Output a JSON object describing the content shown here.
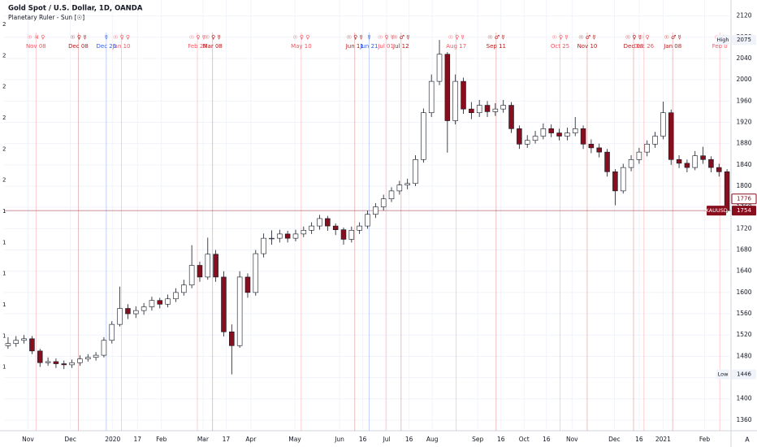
{
  "chart_data": {
    "type": "candlestick",
    "title": "Gold Spot / U.S. Dollar, 1D, OANDA",
    "subtitle": "Planetary Ruler - Sun [☉]",
    "up_color": "#ffffff",
    "down_color": "#880e1e",
    "wick_color": "#131722",
    "open": [
      1500,
      1504,
      1510,
      1513,
      1490,
      1468,
      1470,
      1466,
      1464,
      1468,
      1475,
      1478,
      1482,
      1510,
      1540,
      1570,
      1560,
      1566,
      1573,
      1585,
      1578,
      1588,
      1600,
      1614,
      1651,
      1629,
      1672,
      1629,
      1526,
      1500,
      1629,
      1600,
      1673,
      1702,
      1702,
      1710,
      1702,
      1710,
      1717,
      1725,
      1739,
      1725,
      1718,
      1700,
      1717,
      1725,
      1747,
      1761,
      1776,
      1791,
      1802,
      1805,
      1850,
      1938,
      1997,
      2048,
      1923,
      1997,
      1945,
      1938,
      1952,
      1940,
      1945,
      1952,
      1908,
      1879,
      1886,
      1894,
      1908,
      1900,
      1894,
      1900,
      1908,
      1879,
      1872,
      1864,
      1827,
      1791,
      1835,
      1850,
      1864,
      1879,
      1894,
      1938,
      1850,
      1843,
      1835,
      1857,
      1850,
      1835,
      1827
    ],
    "high": [
      1516,
      1518,
      1520,
      1518,
      1494,
      1478,
      1476,
      1472,
      1474,
      1482,
      1484,
      1488,
      1516,
      1546,
      1611,
      1578,
      1574,
      1580,
      1592,
      1590,
      1596,
      1608,
      1624,
      1689,
      1658,
      1703,
      1680,
      1640,
      1540,
      1640,
      1636,
      1680,
      1711,
      1717,
      1718,
      1716,
      1718,
      1724,
      1732,
      1746,
      1744,
      1730,
      1722,
      1724,
      1732,
      1754,
      1768,
      1784,
      1798,
      1810,
      1814,
      1858,
      1946,
      2010,
      2075,
      2052,
      2010,
      2004,
      1958,
      1962,
      1960,
      1956,
      1962,
      1958,
      1914,
      1896,
      1904,
      1918,
      1916,
      1908,
      1910,
      1930,
      1914,
      1888,
      1880,
      1870,
      1832,
      1842,
      1858,
      1872,
      1886,
      1902,
      1959,
      1944,
      1858,
      1850,
      1866,
      1874,
      1856,
      1842,
      1832
    ],
    "low": [
      1494,
      1498,
      1504,
      1484,
      1460,
      1462,
      1458,
      1456,
      1458,
      1462,
      1470,
      1472,
      1478,
      1504,
      1536,
      1550,
      1552,
      1558,
      1566,
      1570,
      1572,
      1582,
      1594,
      1608,
      1620,
      1624,
      1620,
      1517,
      1446,
      1496,
      1590,
      1594,
      1666,
      1690,
      1694,
      1694,
      1696,
      1704,
      1710,
      1718,
      1716,
      1708,
      1690,
      1694,
      1710,
      1720,
      1740,
      1754,
      1770,
      1784,
      1794,
      1800,
      1844,
      1930,
      1990,
      1863,
      1916,
      1936,
      1926,
      1930,
      1930,
      1932,
      1938,
      1900,
      1870,
      1872,
      1880,
      1888,
      1892,
      1886,
      1886,
      1894,
      1870,
      1862,
      1854,
      1818,
      1764,
      1786,
      1828,
      1842,
      1856,
      1872,
      1888,
      1840,
      1834,
      1826,
      1830,
      1842,
      1826,
      1818,
      1750
    ],
    "close": [
      1504,
      1510,
      1513,
      1490,
      1468,
      1470,
      1466,
      1464,
      1468,
      1475,
      1478,
      1482,
      1510,
      1540,
      1570,
      1560,
      1566,
      1573,
      1585,
      1578,
      1588,
      1600,
      1614,
      1651,
      1629,
      1672,
      1629,
      1526,
      1500,
      1629,
      1600,
      1673,
      1702,
      1702,
      1710,
      1702,
      1710,
      1717,
      1725,
      1739,
      1725,
      1718,
      1700,
      1717,
      1725,
      1747,
      1761,
      1776,
      1791,
      1802,
      1805,
      1850,
      1938,
      1997,
      2048,
      1923,
      1997,
      1945,
      1938,
      1952,
      1940,
      1945,
      1952,
      1908,
      1879,
      1886,
      1894,
      1908,
      1900,
      1894,
      1900,
      1908,
      1879,
      1872,
      1864,
      1827,
      1791,
      1835,
      1850,
      1864,
      1879,
      1894,
      1938,
      1850,
      1843,
      1835,
      1857,
      1850,
      1835,
      1827,
      1754
    ],
    "xlim": [
      -0.5,
      90.5
    ],
    "xticks": [
      {
        "value": 2.5,
        "label": "Nov"
      },
      {
        "value": 7.8,
        "label": "Dec"
      },
      {
        "value": 13.1,
        "label": "2020"
      },
      {
        "value": 16.2,
        "label": "17"
      },
      {
        "value": 19.2,
        "label": "Feb"
      },
      {
        "value": 24.4,
        "label": "Mar"
      },
      {
        "value": 27.3,
        "label": "17"
      },
      {
        "value": 30.4,
        "label": "Apr"
      },
      {
        "value": 35.9,
        "label": "May"
      },
      {
        "value": 41.5,
        "label": "Jun"
      },
      {
        "value": 44.4,
        "label": "16"
      },
      {
        "value": 47.4,
        "label": "Jul"
      },
      {
        "value": 50.2,
        "label": "16"
      },
      {
        "value": 53.1,
        "label": "Aug"
      },
      {
        "value": 58.8,
        "label": "Sep"
      },
      {
        "value": 61.7,
        "label": "16"
      },
      {
        "value": 64.6,
        "label": "Oct"
      },
      {
        "value": 67.4,
        "label": "16"
      },
      {
        "value": 70.6,
        "label": "Nov"
      },
      {
        "value": 75.9,
        "label": "Dec"
      },
      {
        "value": 79,
        "label": "16"
      },
      {
        "value": 82,
        "label": "2021"
      },
      {
        "value": 87.2,
        "label": "Feb"
      }
    ],
    "ylim": [
      1340,
      2150
    ],
    "yticks": [
      1360,
      1400,
      1440,
      1480,
      1520,
      1560,
      1600,
      1640,
      1680,
      1720,
      1760,
      1800,
      1840,
      1880,
      1920,
      1960,
      2000,
      2040,
      2080,
      2120
    ],
    "grid": true,
    "events": [
      {
        "x": 3.5,
        "glyph": "☉ ♃ ♀",
        "date": "Nov 08",
        "color": "#f7525f"
      },
      {
        "x": 8.8,
        "glyph": "☉ ♀ ☿",
        "date": "Dec 08",
        "color": "#b71c1c"
      },
      {
        "x": 12.3,
        "glyph": "☿",
        "date": "Dec 26",
        "color": "#2962ff"
      },
      {
        "x": 14.2,
        "glyph": "☉ ♀ ♀",
        "date": "Jan 10",
        "color": "#f7525f"
      },
      {
        "x": 23.7,
        "glyph": "☉ ♀ ☿",
        "date": "Feb 25",
        "color": "#f7525f"
      },
      {
        "x": 25.6,
        "glyph": "☉ ♀ ☿",
        "date": "Mar 08",
        "color": "#b71c1c"
      },
      {
        "x": 36.7,
        "glyph": "☉ ♀ ♀",
        "date": "May 10",
        "color": "#f7525f"
      },
      {
        "x": 43.4,
        "glyph": "☉ ♀ ☿",
        "date": "Jun 11",
        "color": "#b71c1c"
      },
      {
        "x": 45.2,
        "glyph": "☿",
        "date": "Jun 21",
        "color": "#2962ff"
      },
      {
        "x": 47.3,
        "glyph": "☉ ♀ ☿",
        "date": "Jul 01",
        "color": "#f7525f"
      },
      {
        "x": 49.2,
        "glyph": "☉ ♂ ☿",
        "date": "Jul 12",
        "color": "#b71c1c"
      },
      {
        "x": 56.1,
        "glyph": "☉ ♀ ☿",
        "date": "Aug 17",
        "color": "#f7525f"
      },
      {
        "x": 61.1,
        "glyph": "☉ ♂ ☿",
        "date": "Sep 11",
        "color": "#b71c1c"
      },
      {
        "x": 69.1,
        "glyph": "☉ ♀ ☿",
        "date": "Oct 25",
        "color": "#f7525f"
      },
      {
        "x": 72.5,
        "glyph": "☉ ♂ ☿",
        "date": "Nov 10",
        "color": "#b71c1c"
      },
      {
        "x": 78.3,
        "glyph": "☉ ♀ ☿",
        "date": "Dec 08",
        "color": "#b71c1c"
      },
      {
        "x": 79.6,
        "glyph": "☉ ♀",
        "date": "Dec 26",
        "color": "#f7525f"
      },
      {
        "x": 83.2,
        "glyph": "☉ ♂ ☿",
        "date": "Jan 08",
        "color": "#b71c1c"
      },
      {
        "x": 89.1,
        "glyph": "☉ ♀",
        "date": "Feb 0",
        "color": "#f7525f"
      }
    ],
    "price_tags": [
      {
        "label": "High",
        "value": 2075,
        "color": "#131722",
        "fill": "#f0f3fa"
      },
      {
        "value": 1776,
        "color": "#880e1e",
        "fill": "#ffffff"
      },
      {
        "label": "XAUUSD",
        "value": 1754,
        "color": "#ffffff",
        "fill": "#880e1e"
      },
      {
        "label": "Low",
        "value": 1446,
        "color": "#131722",
        "fill": "#f0f3fa"
      }
    ],
    "left_scale_labels": [
      "2",
      "2",
      "2",
      "2",
      "2",
      "2",
      "1",
      "1",
      "1",
      "1",
      "1",
      "1"
    ],
    "scale_button": "A"
  }
}
